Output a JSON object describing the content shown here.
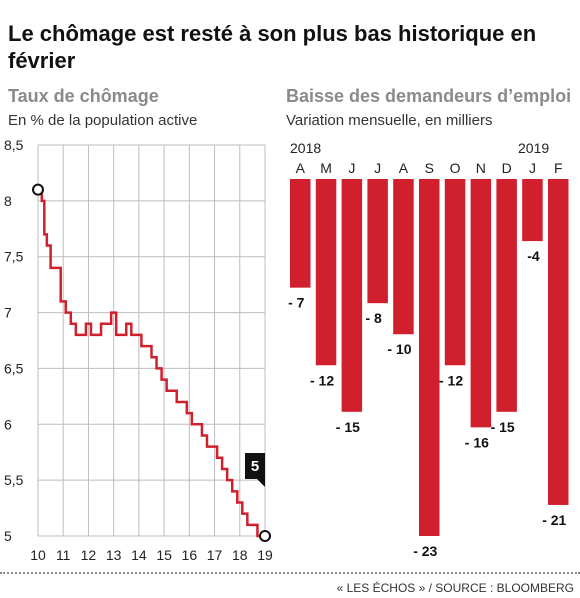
{
  "title": "Le chômage est resté à son plus bas historique en février",
  "source": "« LES ÉCHOS » / SOURCE : BLOOMBERG",
  "colors": {
    "accent": "#d0202e",
    "grid": "#bdbdbd",
    "text": "#111111",
    "subtitle": "#8a8a8a"
  },
  "chart_data": [
    {
      "type": "line",
      "title": "Taux de chômage",
      "subtitle": "En % de la population active",
      "x_ticks": [
        "10",
        "11",
        "12",
        "13",
        "14",
        "15",
        "16",
        "17",
        "18",
        "19"
      ],
      "y_ticks": [
        "5",
        "5,5",
        "6",
        "6,5",
        "7",
        "7,5",
        "8",
        "8,5"
      ],
      "ylim": [
        5,
        8.5
      ],
      "xlim": [
        2010,
        2019
      ],
      "grid": true,
      "annotation": "5",
      "series": [
        {
          "x": [
            2010.0,
            2010.15,
            2010.25,
            2010.35,
            2010.5,
            2010.7,
            2010.9,
            2011.1,
            2011.3,
            2011.5,
            2011.7,
            2011.9,
            2012.1,
            2012.3,
            2012.5,
            2012.7,
            2012.9,
            2013.1,
            2013.3,
            2013.5,
            2013.7,
            2013.9,
            2014.1,
            2014.3,
            2014.5,
            2014.7,
            2014.9,
            2015.1,
            2015.3,
            2015.5,
            2015.7,
            2015.9,
            2016.1,
            2016.3,
            2016.5,
            2016.7,
            2016.9,
            2017.1,
            2017.3,
            2017.5,
            2017.7,
            2017.9,
            2018.1,
            2018.3,
            2018.5,
            2018.7,
            2018.85,
            2019.0
          ],
          "values": [
            8.1,
            8.0,
            7.7,
            7.6,
            7.4,
            7.4,
            7.1,
            7.0,
            6.9,
            6.8,
            6.8,
            6.9,
            6.8,
            6.8,
            6.9,
            6.9,
            7.0,
            6.8,
            6.8,
            6.9,
            6.8,
            6.8,
            6.7,
            6.7,
            6.6,
            6.5,
            6.4,
            6.3,
            6.3,
            6.2,
            6.2,
            6.1,
            6.0,
            6.0,
            5.9,
            5.8,
            5.8,
            5.7,
            5.6,
            5.5,
            5.4,
            5.3,
            5.2,
            5.1,
            5.1,
            5.0,
            5.0,
            5.0
          ]
        }
      ]
    },
    {
      "type": "bar",
      "title": "Baisse des demandeurs d’emploi",
      "subtitle": "Variation mensuelle, en milliers",
      "year_labels": [
        "2018",
        "2019"
      ],
      "categories": [
        "A",
        "M",
        "J",
        "J",
        "A",
        "S",
        "O",
        "N",
        "D",
        "J",
        "F"
      ],
      "values": [
        -7,
        -12,
        -15,
        -8,
        -10,
        -23,
        -12,
        -16,
        -15,
        -4,
        -21
      ],
      "value_labels": [
        "- 7",
        "- 12",
        "- 15",
        "- 8",
        "- 10",
        "- 23",
        "- 12",
        "- 16",
        "- 15",
        "-4",
        "- 21"
      ],
      "ylim": [
        -23,
        0
      ]
    }
  ]
}
